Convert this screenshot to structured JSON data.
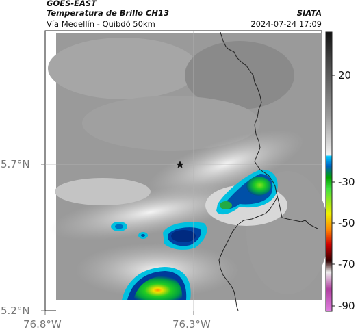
{
  "header": {
    "satellite": "GOES-EAST",
    "product": "Temperatura de Brillo CH13",
    "agency": "SIATA",
    "route": "Vía Medellín - Quibdó 50km",
    "timestamp": "2024-07-24 17:09"
  },
  "axes": {
    "lat_ticks": [
      {
        "value": 5.7,
        "label": "5.7°N"
      },
      {
        "value": 5.2,
        "label": "5.2°N"
      }
    ],
    "lon_ticks": [
      {
        "value": -76.8,
        "label": "76.8°W"
      },
      {
        "value": -76.3,
        "label": "76.3°W"
      }
    ]
  },
  "colorbar": {
    "ticks": [
      {
        "value": 20,
        "label": "20"
      },
      {
        "value": -30,
        "label": "-30"
      },
      {
        "value": -50,
        "label": "-50"
      },
      {
        "value": -70,
        "label": "-70"
      },
      {
        "value": -90,
        "label": "-90"
      }
    ]
  },
  "map": {
    "marker": "star-icon",
    "colors": {
      "warm": "#9a9a9a",
      "cold_cloud_edge": "#00c0e0",
      "deep_blue": "#003a9a",
      "green": "#22cc22",
      "yellow": "#f0e000",
      "orange": "#ff9000",
      "border_line": "#222222"
    }
  }
}
